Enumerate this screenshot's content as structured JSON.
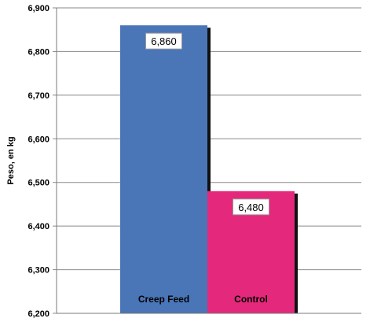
{
  "chart_data": {
    "type": "bar",
    "title": "",
    "xlabel": "",
    "ylabel": "Peso, en kg",
    "ylim": [
      6200,
      6900
    ],
    "yticks": [
      6200,
      6300,
      6400,
      6500,
      6600,
      6700,
      6800,
      6900
    ],
    "ytick_labels": [
      "6,200",
      "6,300",
      "6,400",
      "6,500",
      "6,600",
      "6,700",
      "6,800",
      "6,900"
    ],
    "grid": true,
    "legend": "none",
    "categories": [
      "Creep Feed",
      "Control"
    ],
    "values": [
      6860,
      6480
    ],
    "value_labels": [
      "6,860",
      "6,480"
    ],
    "colors": [
      "#4A76B8",
      "#E4297C"
    ]
  }
}
